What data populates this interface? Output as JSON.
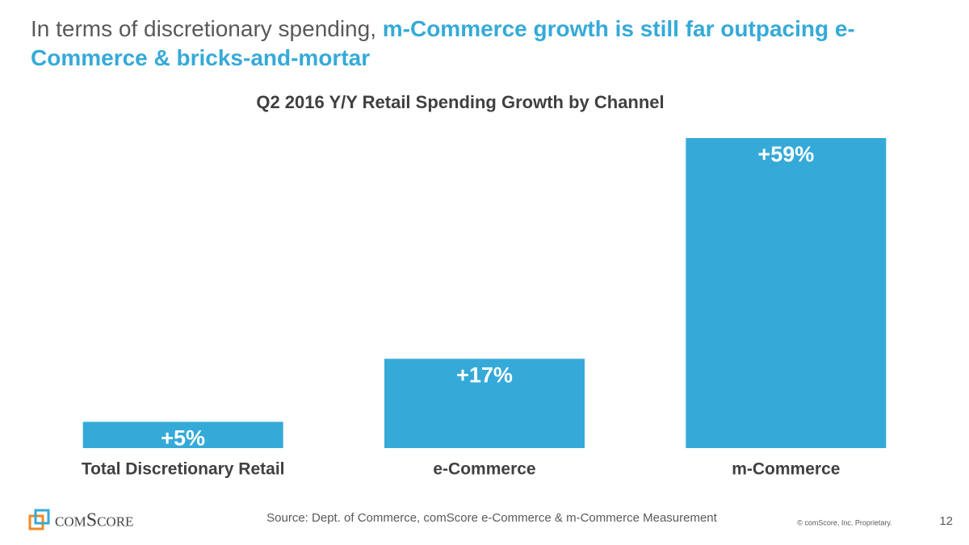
{
  "headline": {
    "lead": "In terms of discretionary spending,",
    "highlight": "m-Commerce growth is still far outpacing e-Commerce & bricks-and-mortar"
  },
  "chart_data": {
    "type": "bar",
    "title": "Q2 2016 Y/Y Retail Spending Growth by Channel",
    "categories": [
      "Total Discretionary Retail",
      "e-Commerce",
      "m-Commerce"
    ],
    "values": [
      5,
      17,
      59
    ],
    "value_labels": [
      "+5%",
      "+17%",
      "+59%"
    ],
    "color": "#35aad8"
  },
  "footer": {
    "logo": "comScore",
    "source": "Source: Dept. of Commerce, comScore e-Commerce & m-Commerce Measurement",
    "copyright": "© comScore, Inc. Proprietary.",
    "page": "12"
  }
}
